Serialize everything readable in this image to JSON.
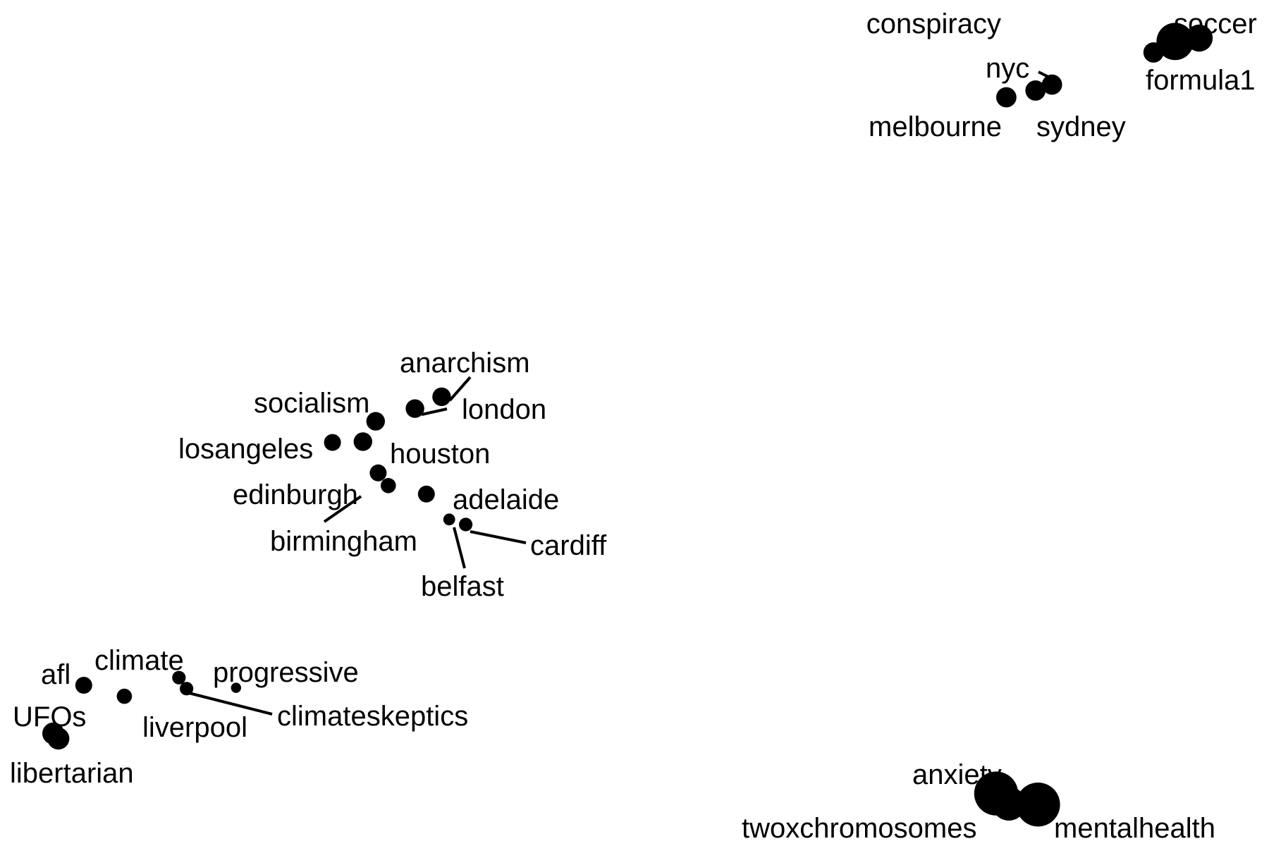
{
  "chart_data": {
    "type": "scatter",
    "title": "",
    "xlabel": "",
    "ylabel": "",
    "grid": false,
    "axes_visible": false,
    "point_color": "#000000",
    "points": [
      {
        "label": "conspiracy",
        "x": 0.926,
        "y": 0.049,
        "size": 2.2
      },
      {
        "label": "soccer",
        "x": 0.945,
        "y": 0.045,
        "size": 1.6
      },
      {
        "label": "formula1",
        "x": 0.909,
        "y": 0.062,
        "size": 1.2
      },
      {
        "label": "nyc",
        "x": 0.829,
        "y": 0.1,
        "size": 1.2
      },
      {
        "label": "melbourne",
        "x": 0.793,
        "y": 0.115,
        "size": 1.2
      },
      {
        "label": "sydney",
        "x": 0.816,
        "y": 0.107,
        "size": 1.2
      },
      {
        "label": "anarchism",
        "x": 0.348,
        "y": 0.469,
        "size": 1.1
      },
      {
        "label": "london",
        "x": 0.327,
        "y": 0.483,
        "size": 1.1
      },
      {
        "label": "socialism",
        "x": 0.296,
        "y": 0.498,
        "size": 1.1
      },
      {
        "label": "losangeles",
        "x": 0.262,
        "y": 0.523,
        "size": 1.0
      },
      {
        "label": "houston",
        "x": 0.286,
        "y": 0.522,
        "size": 1.1
      },
      {
        "label": "edinburgh",
        "x": 0.298,
        "y": 0.559,
        "size": 1.0
      },
      {
        "label": "birmingham",
        "x": 0.306,
        "y": 0.574,
        "size": 0.9
      },
      {
        "label": "adelaide",
        "x": 0.336,
        "y": 0.584,
        "size": 1.0
      },
      {
        "label": "belfast",
        "x": 0.354,
        "y": 0.614,
        "size": 0.7
      },
      {
        "label": "cardiff",
        "x": 0.367,
        "y": 0.62,
        "size": 0.8
      },
      {
        "label": "afl",
        "x": 0.066,
        "y": 0.81,
        "size": 1.0
      },
      {
        "label": "climate",
        "x": 0.141,
        "y": 0.801,
        "size": 0.8
      },
      {
        "label": "progressive",
        "x": 0.186,
        "y": 0.813,
        "size": 0.6
      },
      {
        "label": "liverpool",
        "x": 0.098,
        "y": 0.823,
        "size": 0.9
      },
      {
        "label": "climateskeptics",
        "x": 0.147,
        "y": 0.814,
        "size": 0.8
      },
      {
        "label": "UFOs",
        "x": 0.042,
        "y": 0.867,
        "size": 1.3
      },
      {
        "label": "libertarian",
        "x": 0.046,
        "y": 0.873,
        "size": 1.3
      },
      {
        "label": "anxiety",
        "x": 0.785,
        "y": 0.938,
        "size": 2.6
      },
      {
        "label": "twoxchromosomes",
        "x": 0.795,
        "y": 0.95,
        "size": 2.0
      },
      {
        "label": "mentalhealth",
        "x": 0.818,
        "y": 0.951,
        "size": 2.6
      }
    ]
  }
}
